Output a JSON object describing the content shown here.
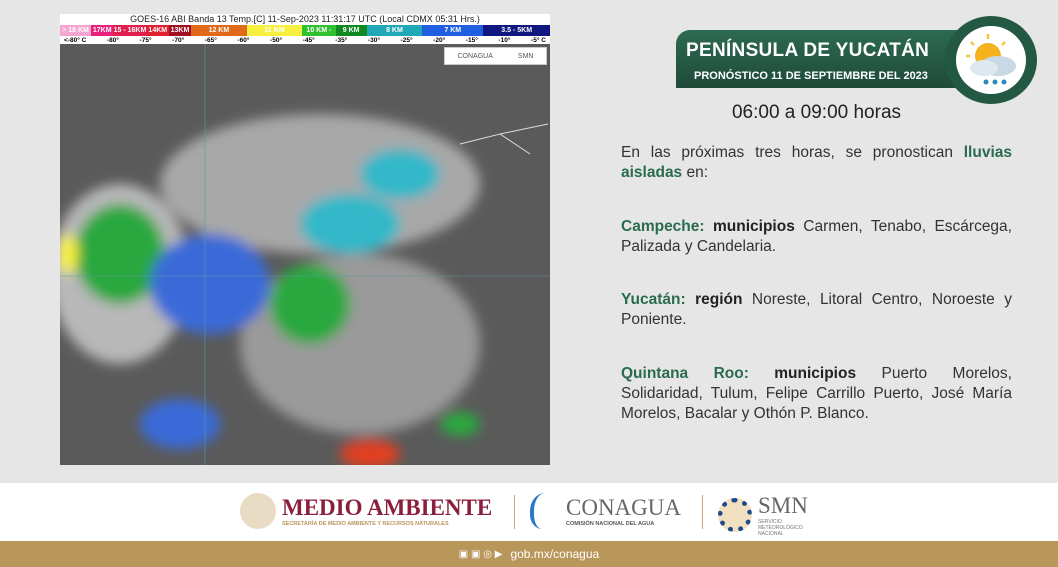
{
  "satellite": {
    "title": "GOES-16 ABI Banda 13 Temp.[C] 11-Sep-2023 11:31:17 UTC (Local CDMX  05:31 Hrs.)",
    "scale": [
      {
        "label": "> 18 KM",
        "color": "#f4a6d0"
      },
      {
        "label": "17KM",
        "color": "#e8207e"
      },
      {
        "label": "15 - 16KM",
        "color": "#e0204c"
      },
      {
        "label": "14KM",
        "color": "#e02030"
      },
      {
        "label": "13KM",
        "color": "#a01020"
      },
      {
        "label": "12 KM",
        "color": "#e06a1a"
      },
      {
        "label": "11 KM",
        "color": "#f8f040"
      },
      {
        "label": "10 KM -",
        "color": "#30c030"
      },
      {
        "label": "9 KM",
        "color": "#108a20"
      },
      {
        "label": "8 KM",
        "color": "#20a8b8"
      },
      {
        "label": "7 KM",
        "color": "#2060e0"
      },
      {
        "label": "3.5 - 5KM",
        "color": "#101880"
      }
    ],
    "temps": [
      "<-80° C",
      "-80°",
      "-75°",
      "-70°",
      "-65°",
      "-60°",
      "-50°",
      "-45°",
      "-35°",
      "-30°",
      "-25°",
      "-20°",
      "-15°",
      "-10°",
      "-5° C"
    ],
    "logo_conagua": "CONAGUA",
    "logo_smn": "SMN"
  },
  "header": {
    "title": "PENÍNSULA DE YUCATÁN",
    "subtitle": "PRONÓSTICO 11 DE SEPTIEMBRE DEL 2023",
    "icon": "partly-cloudy-rain-icon"
  },
  "time": "06:00 a 09:00 horas",
  "intro": {
    "text": "En las próximas tres horas, se pronostican ",
    "highlight": "lluvias aisladas",
    "end": " en:"
  },
  "regions": [
    {
      "state": "Campeche:",
      "kind": "municipios",
      "text": " Carmen, Tenabo, Escárcega, Palizada y Candelaria."
    },
    {
      "state": "Yucatán:",
      "kind": "región",
      "text": " Noreste, Litoral Centro, Noroeste y Poniente."
    },
    {
      "state": "Quintana Roo:",
      "kind": "municipios",
      "text": " Puerto Morelos, Solidaridad, Tulum, Felipe Carrillo Puerto, José María Morelos, Bacalar y Othón P. Blanco."
    }
  ],
  "footer": {
    "medio": "MEDIO AMBIENTE",
    "medio_sub": "SECRETARÍA DE MEDIO AMBIENTE Y RECURSOS NATURALES",
    "conagua": "CONAGUA",
    "conagua_sub": "COMISIÓN NACIONAL DEL AGUA",
    "smn": "SMN",
    "smn_sub": "SERVICIO METEOROLÓGICO NACIONAL",
    "url": "gob.mx/conagua"
  }
}
